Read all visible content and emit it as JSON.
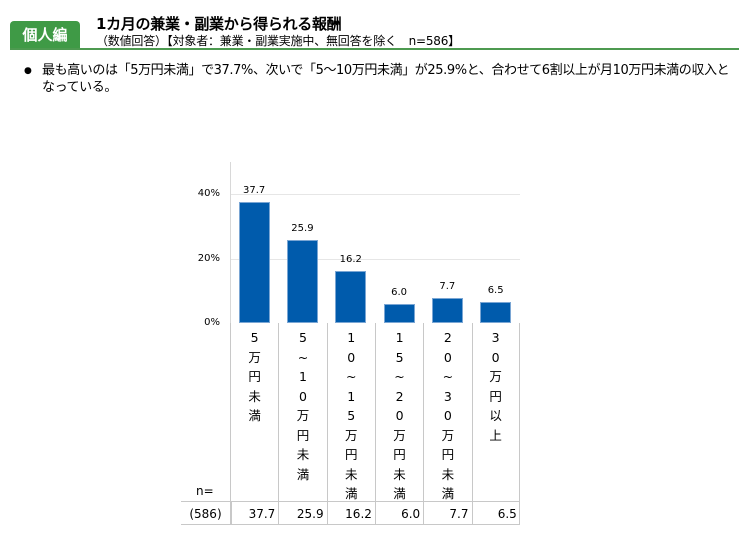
{
  "header": {
    "tab_label": "個人編",
    "title": "1カ月の兼業・副業から得られる報酬",
    "subtitle": "（数値回答）【対象者：兼業・副業実施中、無回答を除く　n=586】",
    "accent_color": "#3f9a46"
  },
  "summary": {
    "bullet": "●",
    "text": "最も高いのは「5万円未満」で37.7%、次いで「5～10万円未満」が25.9%と、合わせて6割以上が月10万円未満の収入となっている。"
  },
  "chart_data": {
    "type": "bar",
    "title": "1カ月の兼業・副業から得られる報酬",
    "xlabel": "",
    "ylabel": "",
    "ylim": [
      0,
      50
    ],
    "yticks": [
      "0%",
      "20%",
      "40%"
    ],
    "grid": true,
    "legend": null,
    "bar_color": "#005bac",
    "categories": [
      "5万円未満",
      "5～10万円未満",
      "10～15万円未満",
      "15～20万円未満",
      "20～30万円未満",
      "30万円以上"
    ],
    "categories_vertical": [
      "5\n万\n円\n未\n満",
      "5\n~\n1\n0\n万\n円\n未\n満",
      "1\n0\n~\n1\n5\n万\n円\n未\n満",
      "1\n5\n~\n2\n0\n万\n円\n未\n満",
      "2\n0\n~\n3\n0\n万\n円\n未\n満",
      "3\n0\n万\n円\n以\n上"
    ],
    "values": [
      37.7,
      25.9,
      16.2,
      6.0,
      7.7,
      6.5
    ],
    "value_labels": [
      "37.7",
      "25.9",
      "16.2",
      "6.0",
      "7.7",
      "6.5"
    ],
    "n_label": "n=",
    "n_base": "(586)"
  }
}
